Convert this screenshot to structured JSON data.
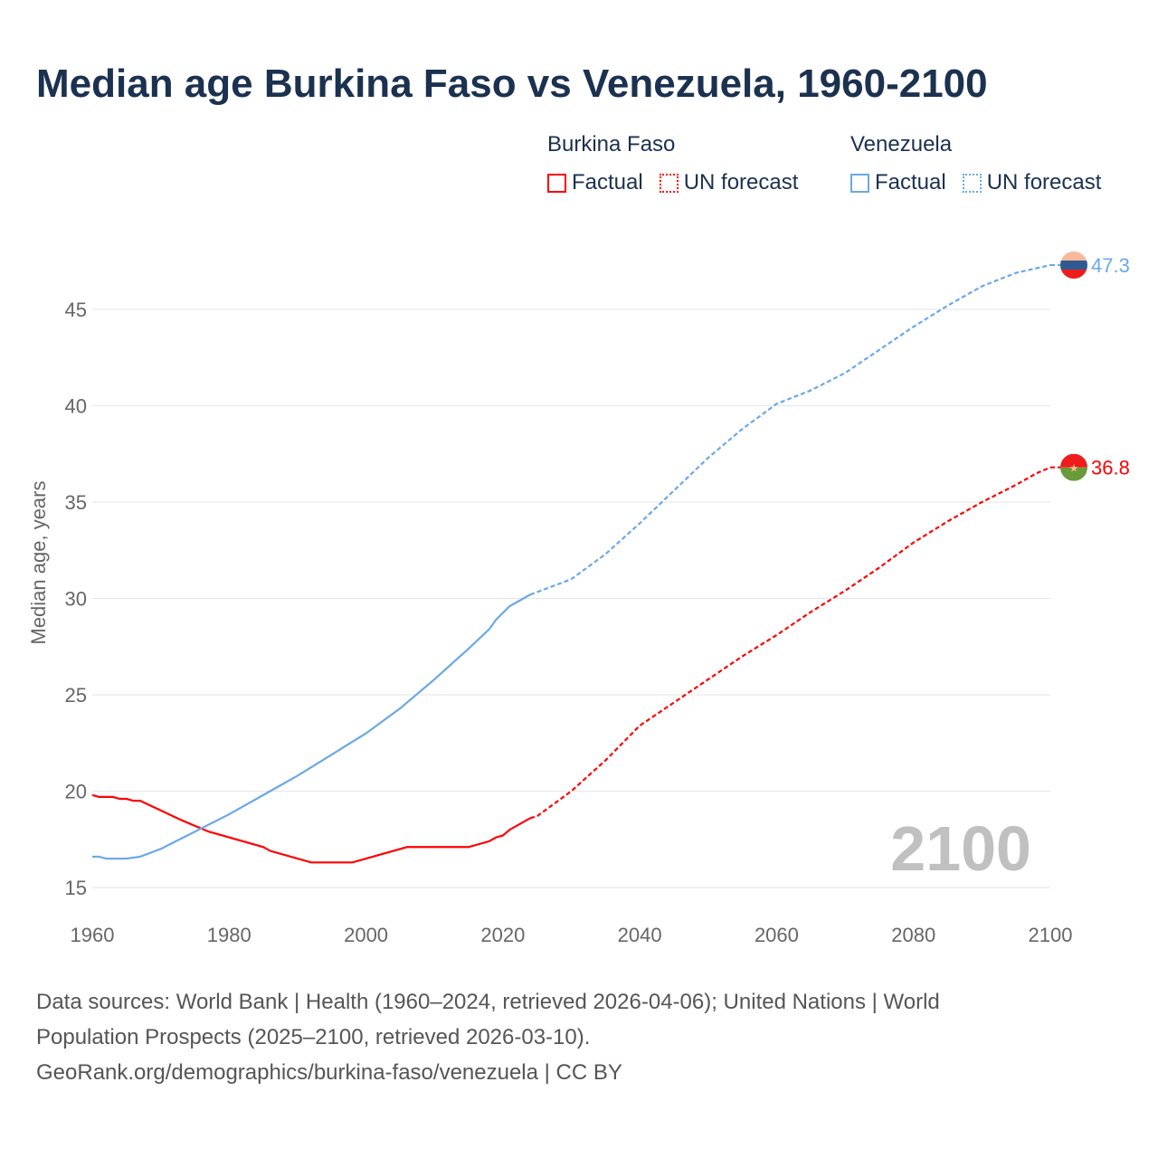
{
  "title": "Median age Burkina Faso vs Venezuela, 1960-2100",
  "legend": [
    {
      "country": "Burkina Faso",
      "factual": "Factual",
      "forecast": "UN forecast",
      "color": "#ff0000"
    },
    {
      "country": "Venezuela",
      "factual": "Factual",
      "forecast": "UN forecast",
      "color": "#6aa8e8"
    }
  ],
  "year_watermark": "2100",
  "footer": {
    "line1": "Data sources: World Bank | Health (1960–2024, retrieved 2026-04-06); United Nations | World",
    "line2": "Population Prospects (2025–2100, retrieved 2026-03-10).",
    "line3": "GeoRank.org/demographics/burkina-faso/venezuela | CC BY"
  },
  "chart_data": {
    "type": "line",
    "title": "Median age Burkina Faso vs Venezuela, 1960-2100",
    "xlabel": "",
    "ylabel": "Median age, years",
    "xlim": [
      1960,
      2100
    ],
    "ylim": [
      15,
      47.5
    ],
    "xticks": [
      1960,
      1980,
      2000,
      2020,
      2040,
      2060,
      2080,
      2100
    ],
    "yticks": [
      15,
      20,
      25,
      30,
      35,
      40,
      45
    ],
    "grid": true,
    "series": [
      {
        "name": "Burkina Faso",
        "color": "#ff0000",
        "end_label": "36.8",
        "factual": {
          "x": [
            1960,
            1961,
            1963,
            1964,
            1965,
            1966,
            1967,
            1970,
            1973,
            1975,
            1977,
            1980,
            1985,
            1986,
            1990,
            1992,
            1998,
            2000,
            2006,
            2015,
            2018,
            2019,
            2020,
            2021,
            2024
          ],
          "y": [
            19.8,
            19.7,
            19.7,
            19.6,
            19.6,
            19.5,
            19.5,
            19.0,
            18.5,
            18.2,
            17.9,
            17.6,
            17.1,
            16.9,
            16.5,
            16.3,
            16.3,
            16.5,
            17.1,
            17.1,
            17.4,
            17.6,
            17.7,
            18.0,
            18.6
          ]
        },
        "forecast": {
          "x": [
            2024,
            2025,
            2030,
            2035,
            2040,
            2045,
            2050,
            2055,
            2060,
            2065,
            2070,
            2075,
            2080,
            2085,
            2090,
            2095,
            2098,
            2100
          ],
          "y": [
            18.6,
            18.7,
            20.0,
            21.6,
            23.4,
            24.6,
            25.8,
            27.0,
            28.1,
            29.3,
            30.4,
            31.6,
            32.9,
            34.0,
            35.0,
            35.9,
            36.5,
            36.8
          ]
        }
      },
      {
        "name": "Venezuela",
        "color": "#6aa8e8",
        "end_label": "47.3",
        "factual": {
          "x": [
            1960,
            1961,
            1962,
            1965,
            1967,
            1970,
            1975,
            1980,
            1985,
            1990,
            1995,
            2000,
            2005,
            2010,
            2015,
            2018,
            2019,
            2021,
            2024
          ],
          "y": [
            16.6,
            16.6,
            16.5,
            16.5,
            16.6,
            17.0,
            17.9,
            18.8,
            19.8,
            20.8,
            21.9,
            23.0,
            24.3,
            25.8,
            27.4,
            28.4,
            28.9,
            29.6,
            30.2
          ]
        },
        "forecast": {
          "x": [
            2024,
            2030,
            2035,
            2040,
            2045,
            2050,
            2055,
            2060,
            2065,
            2070,
            2075,
            2080,
            2085,
            2090,
            2095,
            2100
          ],
          "y": [
            30.2,
            31.0,
            32.3,
            33.9,
            35.6,
            37.3,
            38.8,
            40.1,
            40.8,
            41.7,
            42.9,
            44.1,
            45.2,
            46.2,
            46.9,
            47.3
          ]
        }
      }
    ]
  }
}
